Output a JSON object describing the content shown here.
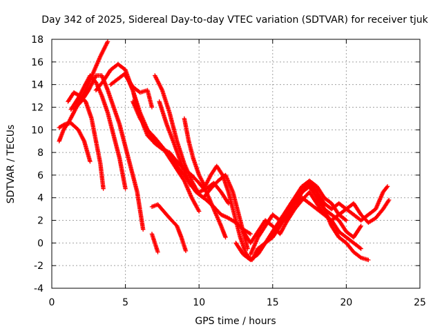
{
  "chart_data": {
    "type": "scatter",
    "title": "Day 342 of 2025, Sidereal Day-to-day VTEC variation (SDTVAR) for receiver tjuk",
    "xlabel": "GPS time / hours",
    "ylabel": "SDTVAR / TECUs",
    "xlim": [
      0,
      25
    ],
    "ylim": [
      -4,
      18
    ],
    "xticks": [
      0,
      5,
      10,
      15,
      20,
      25
    ],
    "yticks": [
      -4,
      -2,
      0,
      2,
      4,
      6,
      8,
      10,
      12,
      14,
      16,
      18
    ],
    "grid": true,
    "marker": "plus",
    "color": "#ff0000",
    "series": [
      {
        "x": [
          0.5,
          0.8,
          1.2,
          1.6,
          2.0,
          2.4,
          2.8,
          3.3,
          3.8
        ],
        "y": [
          9.0,
          10.0,
          10.8,
          11.8,
          12.8,
          13.8,
          15.0,
          16.5,
          17.8
        ]
      },
      {
        "x": [
          0.5,
          0.9,
          1.3,
          1.8,
          2.2,
          2.6
        ],
        "y": [
          10.2,
          10.5,
          10.6,
          10.0,
          9.0,
          7.2
        ]
      },
      {
        "x": [
          1.1,
          1.5,
          1.9,
          2.3,
          2.7,
          3.0,
          3.3,
          3.5
        ],
        "y": [
          12.5,
          13.3,
          13.0,
          12.5,
          11.0,
          9.0,
          7.0,
          4.8
        ]
      },
      {
        "x": [
          1.3,
          1.8,
          2.2,
          2.6,
          3.0,
          3.4,
          3.8,
          4.2,
          4.6,
          5.0
        ],
        "y": [
          11.8,
          12.8,
          13.8,
          14.8,
          14.2,
          13.0,
          11.5,
          9.5,
          7.5,
          4.8
        ]
      },
      {
        "x": [
          1.5,
          2.0,
          2.5,
          3.0,
          3.4,
          3.8,
          4.2,
          4.6,
          5.0,
          5.4,
          5.8,
          6.2
        ],
        "y": [
          11.8,
          12.5,
          13.5,
          14.8,
          14.8,
          13.5,
          12.0,
          10.5,
          8.5,
          6.5,
          4.5,
          1.2
        ]
      },
      {
        "x": [
          3.0,
          3.5,
          4.0,
          4.5,
          5.0,
          5.5,
          5.8,
          6.2,
          6.5,
          7.0,
          7.5,
          8.0,
          8.5,
          9.0,
          9.5,
          10.0,
          10.5,
          11.0,
          11.5,
          11.8
        ],
        "y": [
          13.5,
          14.3,
          15.3,
          15.8,
          15.3,
          13.5,
          12.0,
          10.5,
          9.5,
          8.8,
          8.3,
          8.0,
          7.2,
          6.5,
          6.0,
          5.3,
          4.5,
          3.0,
          1.5,
          0.5
        ]
      },
      {
        "x": [
          4.0,
          4.5,
          5.0,
          5.5,
          6.0,
          6.5,
          7.0,
          7.5,
          8.0,
          8.5,
          9.0,
          9.5,
          10.0,
          10.5,
          11.0,
          11.5,
          12.0
        ],
        "y": [
          14.0,
          14.5,
          15.0,
          13.5,
          11.5,
          10.0,
          9.0,
          8.5,
          7.8,
          6.8,
          6.0,
          5.0,
          4.5,
          4.8,
          5.3,
          4.5,
          3.5
        ]
      },
      {
        "x": [
          5.0,
          5.5,
          6.0,
          6.5,
          6.8
        ],
        "y": [
          14.8,
          13.8,
          13.3,
          13.5,
          12.0
        ]
      },
      {
        "x": [
          5.5,
          6.0,
          6.5,
          7.0,
          7.5,
          8.0,
          8.5,
          9.0,
          9.5,
          10.0
        ],
        "y": [
          12.5,
          11.0,
          10.0,
          9.3,
          8.5,
          7.5,
          6.5,
          5.5,
          4.0,
          2.8
        ]
      },
      {
        "x": [
          6.8,
          7.2,
          7.6,
          8.0,
          8.5,
          8.8,
          9.1
        ],
        "y": [
          3.2,
          3.4,
          2.8,
          2.2,
          1.5,
          0.5,
          -0.7
        ]
      },
      {
        "x": [
          6.8,
          7.0,
          7.2
        ],
        "y": [
          0.8,
          0.0,
          -0.8
        ]
      },
      {
        "x": [
          7.0,
          7.5,
          8.0,
          8.5,
          9.0,
          9.5,
          10.0,
          10.5,
          11.0,
          11.5,
          12.0,
          12.5,
          13.0,
          13.5
        ],
        "y": [
          14.8,
          13.5,
          11.5,
          9.0,
          7.0,
          5.5,
          4.3,
          3.8,
          3.2,
          2.5,
          2.2,
          1.8,
          1.2,
          0.8
        ]
      },
      {
        "x": [
          7.3,
          7.8,
          8.3,
          8.8,
          9.3,
          9.8,
          10.3,
          10.8,
          11.3,
          11.8,
          12.3,
          12.8,
          13.3
        ],
        "y": [
          12.5,
          10.5,
          8.8,
          7.0,
          5.5,
          4.5,
          4.0,
          4.8,
          5.5,
          6.0,
          4.5,
          2.0,
          -0.5
        ]
      },
      {
        "x": [
          9.0,
          9.3,
          9.6,
          10.0,
          10.4,
          10.8,
          11.2,
          11.6,
          12.0,
          12.4,
          12.8,
          13.2,
          13.6,
          14.0
        ],
        "y": [
          11.0,
          9.0,
          7.5,
          6.0,
          5.0,
          6.0,
          6.8,
          6.0,
          4.5,
          2.5,
          0.5,
          -1.0,
          -1.5,
          -0.5
        ]
      },
      {
        "x": [
          12.5,
          13.0,
          13.5,
          14.0,
          14.5,
          15.0,
          15.5,
          16.0,
          16.5,
          17.0,
          17.5,
          18.0,
          18.5,
          19.0,
          19.5,
          20.0,
          20.5,
          21.0,
          21.5
        ],
        "y": [
          0.0,
          -1.0,
          -1.5,
          -1.0,
          0.0,
          1.0,
          2.0,
          3.0,
          4.0,
          5.0,
          5.3,
          4.5,
          3.0,
          1.5,
          0.5,
          0.0,
          -0.8,
          -1.3,
          -1.5
        ]
      },
      {
        "x": [
          13.0,
          13.5,
          14.0,
          14.5,
          15.0,
          15.5,
          16.0,
          16.5,
          17.0,
          17.5,
          18.0,
          18.5,
          19.0,
          19.5,
          20.0,
          20.5,
          21.0
        ],
        "y": [
          1.0,
          0.0,
          1.0,
          2.0,
          1.5,
          0.8,
          2.0,
          3.5,
          4.5,
          5.0,
          4.0,
          3.0,
          2.5,
          2.0,
          1.0,
          0.5,
          1.5
        ]
      },
      {
        "x": [
          13.5,
          14.0,
          14.5,
          15.0,
          15.5,
          16.0,
          16.5,
          17.0,
          17.5,
          18.0,
          18.5,
          19.0,
          19.5,
          20.0
        ],
        "y": [
          -1.0,
          0.5,
          1.5,
          2.5,
          2.0,
          3.0,
          4.0,
          5.0,
          5.5,
          5.0,
          4.0,
          3.5,
          2.5,
          2.0
        ]
      },
      {
        "x": [
          14.0,
          14.5,
          15.0,
          15.5,
          16.0,
          16.5,
          17.0,
          17.5,
          18.0,
          18.5,
          19.0,
          19.5,
          20.0,
          20.5,
          21.0,
          21.5,
          22.0,
          22.5,
          22.9
        ],
        "y": [
          -0.5,
          0.0,
          0.5,
          1.5,
          2.5,
          3.5,
          4.5,
          5.3,
          4.5,
          3.5,
          3.0,
          3.5,
          3.0,
          3.5,
          2.5,
          1.8,
          2.2,
          3.0,
          3.8
        ]
      },
      {
        "x": [
          15.0,
          15.5,
          16.0,
          16.5,
          17.0,
          17.5,
          18.0,
          18.5,
          19.0,
          19.5,
          20.0,
          20.5,
          21.0,
          21.5,
          22.0,
          22.5,
          22.8
        ],
        "y": [
          1.0,
          2.0,
          2.8,
          3.5,
          4.0,
          3.5,
          3.0,
          2.5,
          2.0,
          2.5,
          3.0,
          2.5,
          2.0,
          2.5,
          3.0,
          4.5,
          5.0
        ]
      },
      {
        "x": [
          16.0,
          16.5,
          17.0,
          17.5,
          18.0,
          18.5,
          19.0,
          19.5,
          20.0,
          20.5,
          21.0
        ],
        "y": [
          2.0,
          3.0,
          3.8,
          4.5,
          3.5,
          2.5,
          2.0,
          1.0,
          0.5,
          0.0,
          -0.5
        ]
      }
    ]
  }
}
